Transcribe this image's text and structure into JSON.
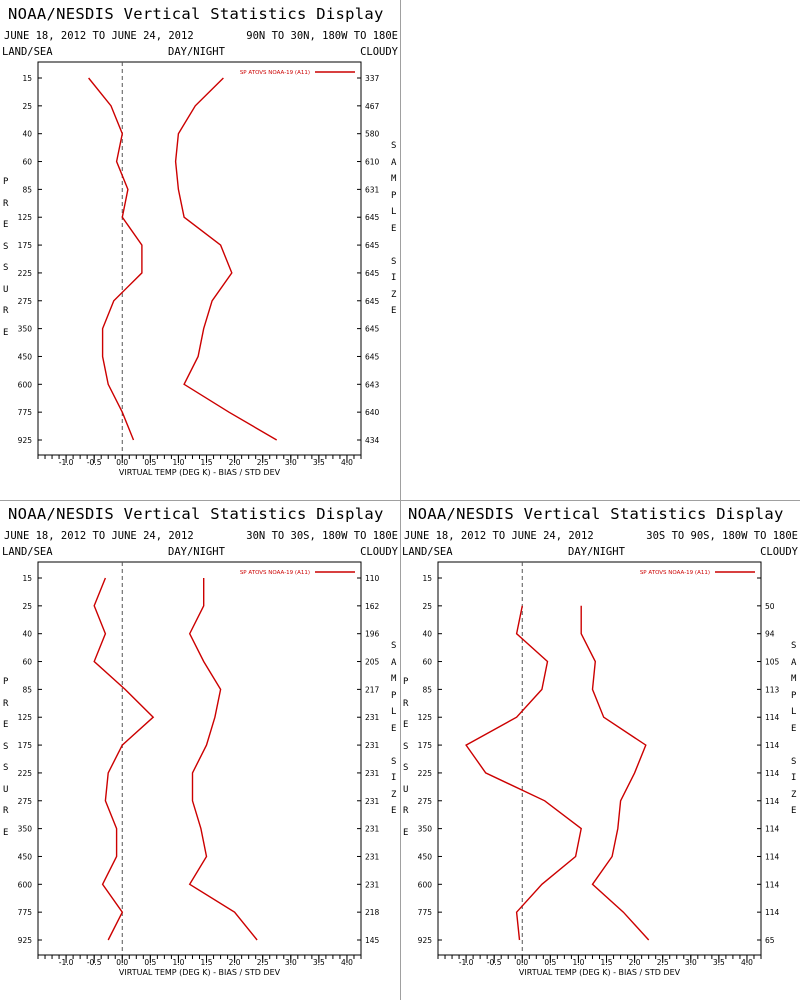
{
  "colors": {
    "series": "#cc0000",
    "axis": "#000000",
    "zero_line": "#555555",
    "divider": "#a0a0a0"
  },
  "chart_data": [
    {
      "type": "line",
      "title": "NOAA/NESDIS Vertical Statistics Display",
      "date_range": "JUNE 18, 2012 TO JUNE 24, 2012",
      "region": "90N TO 30N, 180W TO 180E",
      "surface_label": "LAND/SEA",
      "time_label": "DAY/NIGHT",
      "sky_label": "CLOUDY",
      "left_axis_title": "PRESSURE",
      "right_axis_title": "SAMPLE SIZE",
      "xlabel": "VIRTUAL TEMP (DEG K) - BIAS / STD DEV",
      "x_ticks": [
        "-1.0",
        "-0.5",
        "0.0",
        "0.5",
        "1.0",
        "1.5",
        "2.0",
        "2.5",
        "3.0",
        "3.5",
        "4.0"
      ],
      "xlim": [
        -1.5,
        4.25
      ],
      "pressure_levels": [
        15,
        25,
        40,
        60,
        85,
        125,
        175,
        225,
        275,
        350,
        450,
        600,
        775,
        925
      ],
      "sample_size": [
        337,
        467,
        580,
        610,
        631,
        645,
        645,
        645,
        645,
        645,
        645,
        643,
        640,
        434
      ],
      "legend_label": "SP ATOVS NOAA-19 (A11)",
      "legend_position": "top-right",
      "series": [
        {
          "name": "bias",
          "values": [
            -0.6,
            -0.2,
            0.0,
            -0.1,
            0.1,
            0.0,
            0.35,
            0.35,
            -0.15,
            -0.35,
            -0.35,
            -0.25,
            0.0,
            0.2
          ]
        },
        {
          "name": "std_dev",
          "values": [
            1.8,
            1.3,
            1.0,
            0.95,
            1.0,
            1.1,
            1.75,
            1.95,
            1.6,
            1.45,
            1.35,
            1.1,
            1.9,
            2.75
          ]
        }
      ]
    },
    {
      "type": "line",
      "title": "NOAA/NESDIS Vertical Statistics Display",
      "date_range": "JUNE 18, 2012 TO JUNE 24, 2012",
      "region": "30N TO 30S, 180W TO 180E",
      "surface_label": "LAND/SEA",
      "time_label": "DAY/NIGHT",
      "sky_label": "CLOUDY",
      "left_axis_title": "PRESSURE",
      "right_axis_title": "SAMPLE SIZE",
      "xlabel": "VIRTUAL TEMP (DEG K) - BIAS / STD DEV",
      "x_ticks": [
        "-1.0",
        "-0.5",
        "0.0",
        "0.5",
        "1.0",
        "1.5",
        "2.0",
        "2.5",
        "3.0",
        "3.5",
        "4.0"
      ],
      "xlim": [
        -1.5,
        4.25
      ],
      "pressure_levels": [
        15,
        25,
        40,
        60,
        85,
        125,
        175,
        225,
        275,
        350,
        450,
        600,
        775,
        925
      ],
      "sample_size": [
        110,
        162,
        196,
        205,
        217,
        231,
        231,
        231,
        231,
        231,
        231,
        231,
        218,
        145
      ],
      "legend_label": "SP ATOVS NOAA-19 (A11)",
      "legend_position": "top-right",
      "series": [
        {
          "name": "bias",
          "values": [
            -0.3,
            -0.5,
            -0.3,
            -0.5,
            0.05,
            0.55,
            0.0,
            -0.25,
            -0.3,
            -0.1,
            -0.1,
            -0.35,
            0.0,
            -0.25
          ]
        },
        {
          "name": "std_dev",
          "values": [
            1.45,
            1.45,
            1.2,
            1.45,
            1.75,
            1.65,
            1.5,
            1.25,
            1.25,
            1.4,
            1.5,
            1.2,
            2.0,
            2.4
          ]
        }
      ]
    },
    {
      "type": "line",
      "title": "NOAA/NESDIS Vertical Statistics Display",
      "date_range": "JUNE 18, 2012 TO JUNE 24, 2012",
      "region": "30S TO 90S, 180W TO 180E",
      "surface_label": "LAND/SEA",
      "time_label": "DAY/NIGHT",
      "sky_label": "CLOUDY",
      "left_axis_title": "PRESSURE",
      "right_axis_title": "SAMPLE SIZE",
      "xlabel": "VIRTUAL TEMP (DEG K) - BIAS / STD DEV",
      "x_ticks": [
        "-1.0",
        "-0.5",
        "0.0",
        "0.5",
        "1.0",
        "1.5",
        "2.0",
        "2.5",
        "3.0",
        "3.5",
        "4.0"
      ],
      "xlim": [
        -1.5,
        4.25
      ],
      "pressure_levels": [
        15,
        25,
        40,
        60,
        85,
        125,
        175,
        225,
        275,
        350,
        450,
        600,
        775,
        925
      ],
      "sample_size": [
        null,
        50,
        94,
        105,
        113,
        114,
        114,
        114,
        114,
        114,
        114,
        114,
        114,
        65
      ],
      "legend_label": "SP ATOVS NOAA-19 (A11)",
      "legend_position": "top-right",
      "series": [
        {
          "name": "bias",
          "values": [
            null,
            0.0,
            -0.1,
            0.45,
            0.35,
            -0.1,
            -1.0,
            -0.65,
            0.4,
            1.05,
            0.95,
            0.35,
            -0.1,
            -0.05
          ]
        },
        {
          "name": "std_dev",
          "values": [
            null,
            1.05,
            1.05,
            1.3,
            1.25,
            1.45,
            2.2,
            2.0,
            1.75,
            1.7,
            1.6,
            1.25,
            1.8,
            2.25
          ]
        }
      ]
    }
  ]
}
